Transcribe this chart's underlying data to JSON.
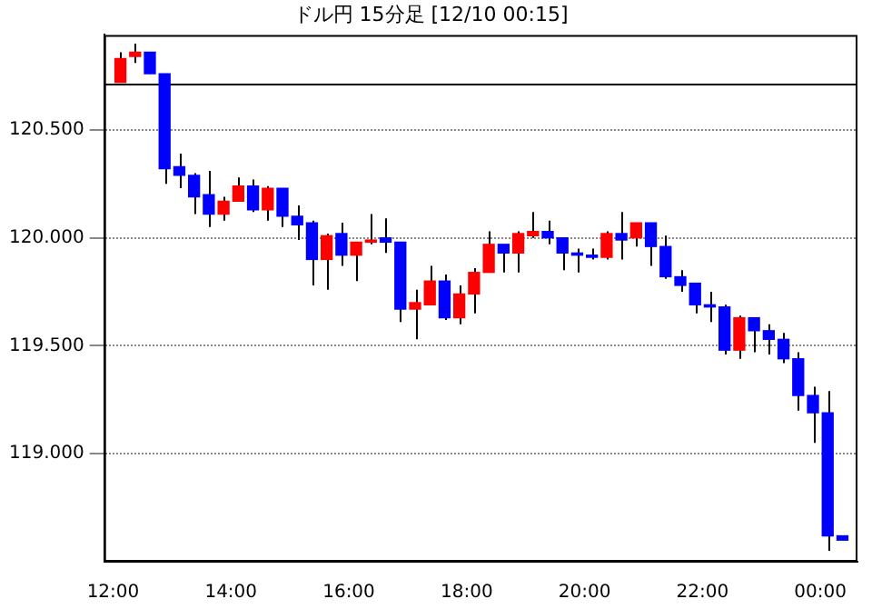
{
  "chart_data": {
    "type": "candlestick",
    "title": "ドル円 15分足 [12/10 00:15]",
    "x": [
      12.125,
      12.375,
      12.625,
      12.875,
      13.125,
      13.375,
      13.625,
      13.875,
      14.125,
      14.375,
      14.625,
      14.875,
      15.125,
      15.375,
      15.625,
      15.875,
      16.125,
      16.375,
      16.625,
      16.875,
      17.125,
      17.375,
      17.625,
      17.875,
      18.125,
      18.375,
      18.625,
      18.875,
      19.125,
      19.375,
      19.625,
      19.875,
      20.125,
      20.375,
      20.625,
      20.875,
      21.125,
      21.375,
      21.625,
      21.875,
      22.125,
      22.375,
      22.625,
      22.875,
      23.125,
      23.375,
      23.625,
      23.875,
      24.125,
      24.375
    ],
    "ohlc": [
      [
        120.72,
        120.86,
        120.72,
        120.83
      ],
      [
        120.84,
        120.9,
        120.81,
        120.86
      ],
      [
        120.86,
        120.86,
        120.76,
        120.76
      ],
      [
        120.76,
        120.76,
        120.25,
        120.32
      ],
      [
        120.33,
        120.39,
        120.23,
        120.29
      ],
      [
        120.29,
        120.3,
        120.11,
        120.19
      ],
      [
        120.2,
        120.31,
        120.05,
        120.11
      ],
      [
        120.11,
        120.19,
        120.08,
        120.17
      ],
      [
        120.17,
        120.28,
        120.17,
        120.24
      ],
      [
        120.24,
        120.27,
        120.12,
        120.13
      ],
      [
        120.13,
        120.24,
        120.08,
        120.23
      ],
      [
        120.23,
        120.23,
        120.05,
        120.1
      ],
      [
        120.1,
        120.15,
        119.99,
        120.06
      ],
      [
        120.07,
        120.08,
        119.78,
        119.9
      ],
      [
        119.9,
        120.02,
        119.76,
        120.01
      ],
      [
        120.02,
        120.07,
        119.87,
        119.92
      ],
      [
        119.92,
        119.98,
        119.8,
        119.98
      ],
      [
        119.98,
        120.11,
        119.97,
        119.99
      ],
      [
        120.0,
        120.09,
        119.93,
        119.98
      ],
      [
        119.98,
        119.98,
        119.61,
        119.67
      ],
      [
        119.67,
        119.76,
        119.53,
        119.7
      ],
      [
        119.69,
        119.87,
        119.69,
        119.8
      ],
      [
        119.8,
        119.83,
        119.62,
        119.63
      ],
      [
        119.63,
        119.78,
        119.6,
        119.74
      ],
      [
        119.74,
        119.86,
        119.65,
        119.84
      ],
      [
        119.84,
        120.03,
        119.84,
        119.97
      ],
      [
        119.97,
        119.97,
        119.84,
        119.93
      ],
      [
        119.93,
        120.03,
        119.84,
        120.02
      ],
      [
        120.01,
        120.12,
        120.0,
        120.03
      ],
      [
        120.03,
        120.08,
        119.97,
        120.0
      ],
      [
        120.0,
        120.0,
        119.85,
        119.93
      ],
      [
        119.93,
        119.95,
        119.84,
        119.92
      ],
      [
        119.92,
        119.95,
        119.9,
        119.91
      ],
      [
        119.91,
        120.03,
        119.9,
        120.02
      ],
      [
        120.02,
        120.12,
        119.9,
        119.99
      ],
      [
        120.0,
        120.07,
        119.96,
        120.07
      ],
      [
        120.07,
        120.07,
        119.87,
        119.96
      ],
      [
        119.96,
        120.01,
        119.81,
        119.82
      ],
      [
        119.82,
        119.85,
        119.75,
        119.78
      ],
      [
        119.79,
        119.79,
        119.65,
        119.69
      ],
      [
        119.69,
        119.75,
        119.61,
        119.68
      ],
      [
        119.68,
        119.69,
        119.46,
        119.48
      ],
      [
        119.48,
        119.64,
        119.44,
        119.63
      ],
      [
        119.63,
        119.63,
        119.47,
        119.57
      ],
      [
        119.57,
        119.6,
        119.46,
        119.53
      ],
      [
        119.53,
        119.56,
        119.42,
        119.44
      ],
      [
        119.44,
        119.47,
        119.2,
        119.27
      ],
      [
        119.27,
        119.31,
        119.05,
        119.19
      ],
      [
        119.19,
        119.29,
        118.55,
        118.62
      ],
      [
        118.62,
        118.62,
        118.6,
        118.6
      ]
    ],
    "colors": [
      "#ff0000",
      "#ff0000",
      "#0000ff",
      "#0000ff",
      "#0000ff",
      "#0000ff",
      "#0000ff",
      "#ff0000",
      "#ff0000",
      "#0000ff",
      "#ff0000",
      "#0000ff",
      "#0000ff",
      "#0000ff",
      "#ff0000",
      "#0000ff",
      "#ff0000",
      "#ff0000",
      "#0000ff",
      "#0000ff",
      "#ff0000",
      "#ff0000",
      "#0000ff",
      "#ff0000",
      "#ff0000",
      "#ff0000",
      "#0000ff",
      "#ff0000",
      "#ff0000",
      "#0000ff",
      "#0000ff",
      "#0000ff",
      "#0000ff",
      "#ff0000",
      "#0000ff",
      "#ff0000",
      "#0000ff",
      "#0000ff",
      "#0000ff",
      "#0000ff",
      "#0000ff",
      "#0000ff",
      "#ff0000",
      "#0000ff",
      "#0000ff",
      "#0000ff",
      "#0000ff",
      "#0000ff",
      "#0000ff",
      "#0000ff"
    ],
    "xlim": [
      11.85,
      24.63
    ],
    "xticks": [
      {
        "value": 12,
        "label": "12:00"
      },
      {
        "value": 14,
        "label": "14:00"
      },
      {
        "value": 16,
        "label": "16:00"
      },
      {
        "value": 18,
        "label": "18:00"
      },
      {
        "value": 20,
        "label": "20:00"
      },
      {
        "value": 22,
        "label": "22:00"
      },
      {
        "value": 24,
        "label": "00:00"
      }
    ],
    "ylim": [
      118.5,
      120.94
    ],
    "yticks": [
      {
        "value": 119,
        "label": "119.000"
      },
      {
        "value": 119.5,
        "label": "119.500"
      },
      {
        "value": 120,
        "label": "120.000"
      },
      {
        "value": 120.5,
        "label": "120.500"
      }
    ],
    "grid": "y",
    "ref_lines": [
      {
        "axis": "y",
        "value": 120.71,
        "color": "#000000"
      }
    ]
  }
}
